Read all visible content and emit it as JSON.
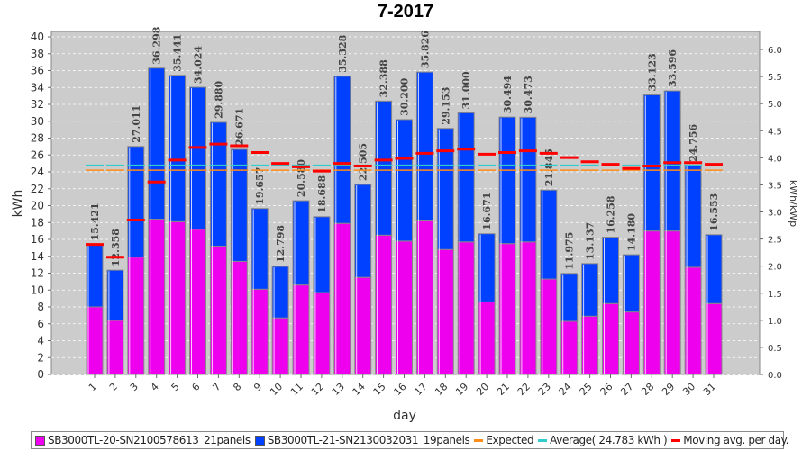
{
  "chart_data": {
    "type": "bar",
    "stacked": true,
    "title": "7-2017",
    "xlabel": "day",
    "ylabel": "kWh",
    "y2label": "kWh/kWp",
    "ylim": [
      0,
      40
    ],
    "y2lim": [
      0,
      6.0
    ],
    "yticks": [
      0,
      2,
      4,
      6,
      8,
      10,
      12,
      14,
      16,
      18,
      20,
      22,
      24,
      26,
      28,
      30,
      32,
      34,
      36,
      38,
      40
    ],
    "y2ticks": [
      "0.0",
      "0.5",
      "1.0",
      "1.5",
      "2.0",
      "2.5",
      "3.0",
      "3.5",
      "4.0",
      "4.5",
      "5.0",
      "5.5",
      "6.0"
    ],
    "grid": true,
    "legend_position": "bottom",
    "categories": [
      "1",
      "2",
      "3",
      "4",
      "5",
      "6",
      "7",
      "8",
      "9",
      "10",
      "11",
      "12",
      "13",
      "14",
      "15",
      "16",
      "17",
      "18",
      "19",
      "20",
      "21",
      "22",
      "23",
      "24",
      "25",
      "26",
      "27",
      "28",
      "29",
      "30",
      "31"
    ],
    "series": [
      {
        "name": "SB3000TL-20-SN2100578613_21panels",
        "color": "#ee00ee",
        "values": [
          8.0,
          6.4,
          13.9,
          18.4,
          18.1,
          17.2,
          15.2,
          13.4,
          10.1,
          6.7,
          10.6,
          9.7,
          17.9,
          11.5,
          16.5,
          15.8,
          18.2,
          14.8,
          15.7,
          8.6,
          15.5,
          15.7,
          11.3,
          6.3,
          6.9,
          8.4,
          7.4,
          17.0,
          17.0,
          12.7,
          8.4
        ]
      },
      {
        "name": "SB3000TL-21-SN2130032031_19panels",
        "color": "#0040ff",
        "values": [
          7.421,
          5.958,
          13.111,
          17.898,
          17.341,
          16.824,
          14.68,
          13.271,
          9.557,
          6.098,
          9.98,
          8.988,
          17.428,
          11.005,
          15.888,
          14.4,
          17.626,
          14.353,
          15.3,
          8.071,
          14.994,
          14.773,
          10.545,
          5.675,
          6.237,
          7.858,
          6.78,
          16.123,
          16.596,
          12.056,
          8.153
        ]
      }
    ],
    "totals": [
      "15.421",
      "12.358",
      "27.011",
      "36.298",
      "35.441",
      "34.024",
      "29.880",
      "26.671",
      "19.657",
      "12.798",
      "20.580",
      "18.688",
      "35.328",
      "22.505",
      "32.388",
      "30.200",
      "35.826",
      "29.153",
      "31.000",
      "16.671",
      "30.494",
      "30.473",
      "21.845",
      "11.975",
      "13.137",
      "16.258",
      "14.180",
      "33.123",
      "33.596",
      "24.756",
      "16.553"
    ],
    "moving_avg": {
      "name": "Moving avg. per day.",
      "color": "#ff0000",
      "values": [
        15.4,
        13.9,
        18.3,
        22.8,
        25.4,
        26.9,
        27.3,
        27.1,
        26.3,
        25.0,
        24.6,
        24.1,
        25.0,
        24.7,
        25.4,
        25.6,
        26.2,
        26.5,
        26.7,
        26.1,
        26.3,
        26.5,
        26.2,
        25.7,
        25.2,
        24.9,
        24.4,
        24.7,
        25.1,
        25.1,
        24.9
      ]
    },
    "expected": {
      "name": "Expected",
      "value": 24.2,
      "color": "#ff8c1a"
    },
    "average": {
      "name": "Average( 24.783 kWh )",
      "value": 24.783,
      "color": "#33cccc"
    }
  }
}
